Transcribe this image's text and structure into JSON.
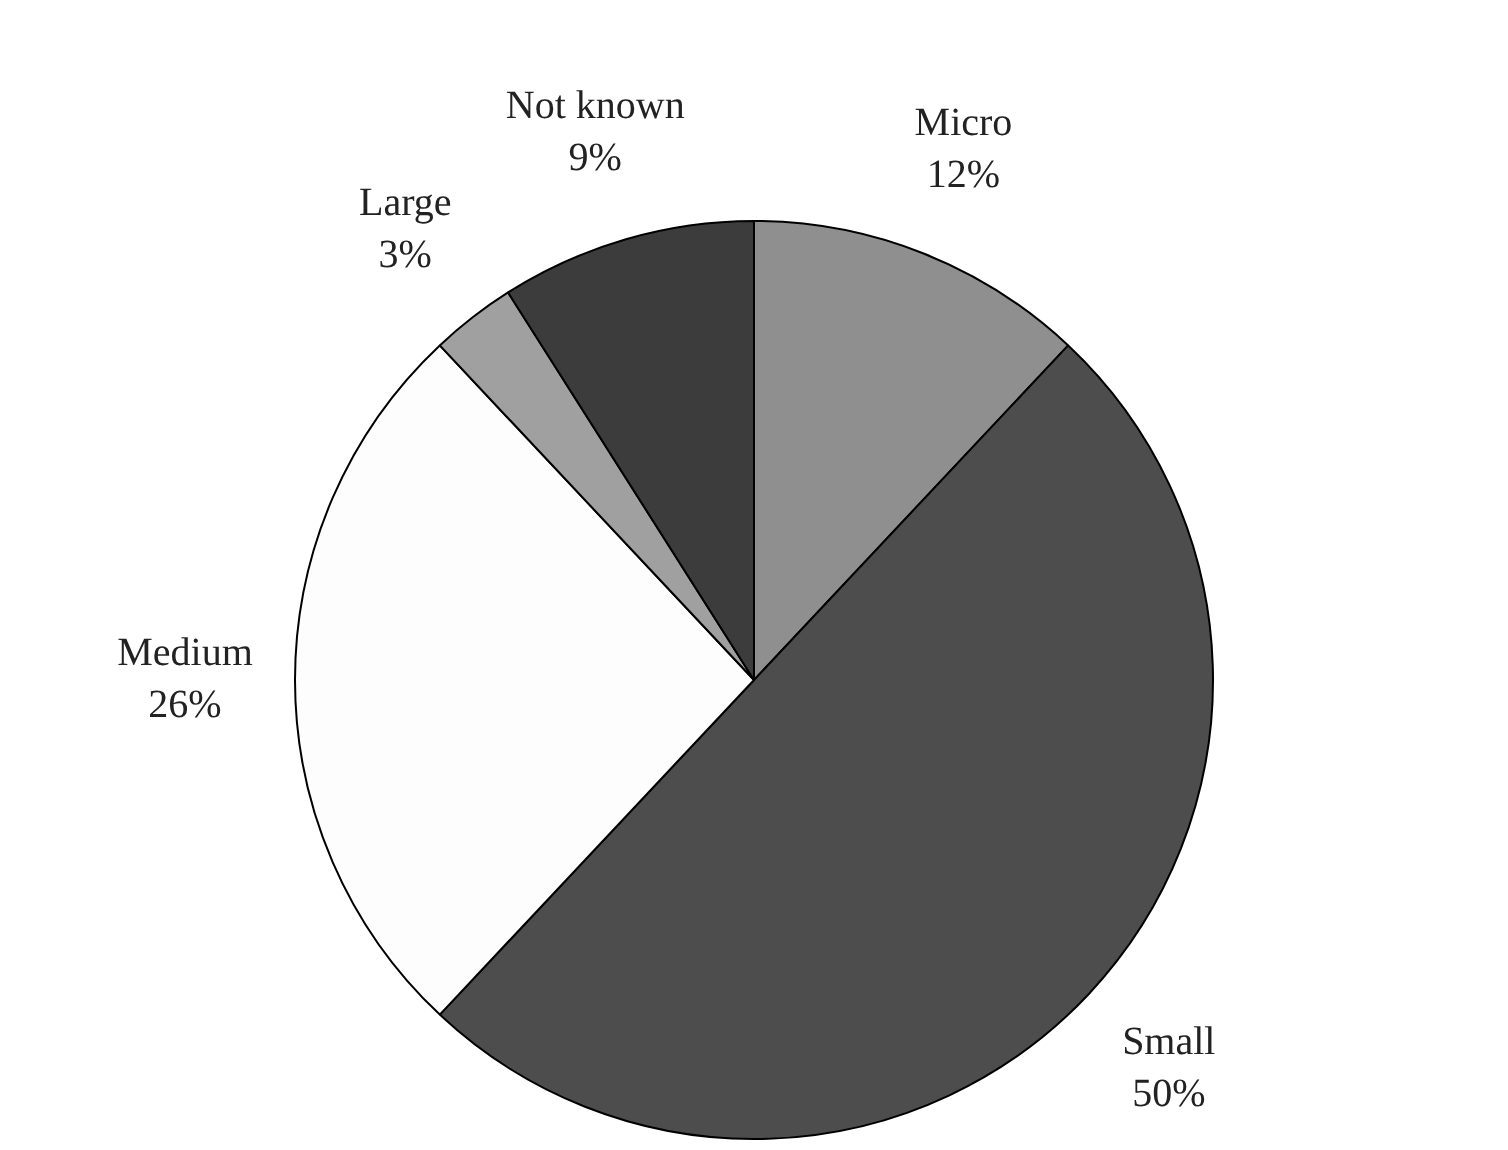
{
  "chart_data": {
    "type": "pie",
    "categories": [
      "Micro",
      "Small",
      "Medium",
      "Large",
      "Not known"
    ],
    "values": [
      12,
      50,
      26,
      3,
      9
    ],
    "value_labels": [
      "12%",
      "50%",
      "26%",
      "3%",
      "9%"
    ],
    "colors": [
      "#8f8f8f",
      "#4d4d4d",
      "#fdfdfd",
      "#a0a0a0",
      "#3c3c3c"
    ],
    "legend": false
  }
}
